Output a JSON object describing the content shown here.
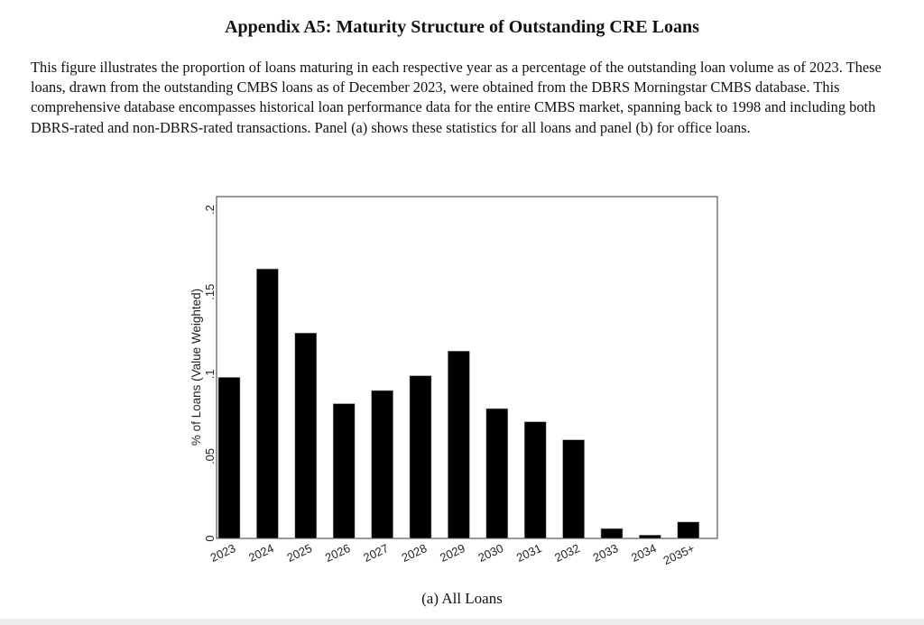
{
  "title": "Appendix A5: Maturity Structure of Outstanding CRE Loans",
  "paragraph": "This figure illustrates the proportion of loans maturing in each respective year as a percentage of the outstanding loan volume as of 2023. These loans, drawn from the outstanding CMBS loans as of December 2023, were obtained from the DBRS Morningstar CMBS database. This comprehensive database encompasses historical loan performance data for the entire CMBS market, spanning back to 1998 and including both DBRS-rated and non-DBRS-rated transactions. Panel (a) shows these statistics for all loans and panel (b) for office loans.",
  "caption": "(a)  All Loans",
  "chart_data": {
    "type": "bar",
    "title": "",
    "xlabel": "",
    "ylabel": "% of Loans (Value Weighted)",
    "categories": [
      "2023",
      "2024",
      "2025",
      "2026",
      "2027",
      "2028",
      "2029",
      "2030",
      "2031",
      "2032",
      "2033",
      "2034",
      "2035+"
    ],
    "values": [
      0.098,
      0.164,
      0.125,
      0.082,
      0.09,
      0.099,
      0.114,
      0.079,
      0.071,
      0.06,
      0.006,
      0.002,
      0.01
    ],
    "yticks": [
      0,
      0.05,
      0.1,
      0.15,
      0.2
    ],
    "ytick_labels": [
      "0",
      ".05",
      ".1",
      ".15",
      ".2"
    ],
    "ylim": [
      0,
      0.208
    ],
    "grid": false,
    "bar_color": "#000000"
  }
}
